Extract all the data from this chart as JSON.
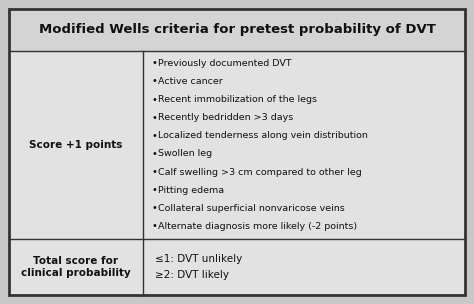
{
  "title": "Modified Wells criteria for pretest probability of DVT",
  "title_fontsize": 9.5,
  "col1_row1": "Score +1 points",
  "col2_row1_bullets": [
    "Previously documented DVT",
    "Active cancer",
    "Recent immobilization of the legs",
    "Recently bedridden >3 days",
    "Localized tenderness along vein distribution",
    "Swollen leg",
    "Calf swelling >3 cm compared to other leg",
    "Pitting edema",
    "Collateral superficial nonvaricose veins",
    "Alternate diagnosis more likely (-2 points)"
  ],
  "col1_row2": "Total score for\nclinical probability",
  "col2_row2_lines": [
    "≤1: DVT unlikely",
    "≥2: DVT likely"
  ],
  "bg_color": "#c8c8c8",
  "cell_bg_light": "#e2e2e2",
  "header_bg": "#d4d4d4",
  "border_color": "#333333",
  "text_color": "#111111",
  "font_family": "DejaVu Sans",
  "figw": 4.74,
  "figh": 3.04,
  "dpi": 100
}
